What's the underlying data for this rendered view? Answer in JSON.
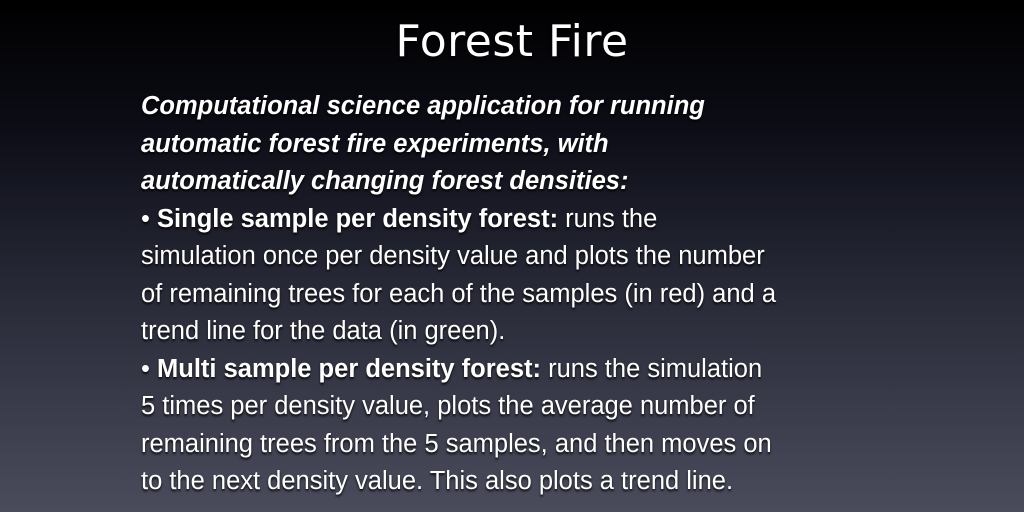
{
  "slide": {
    "title": "Forest Fire",
    "intro_lines": [
      "Computational science application for running",
      "automatic forest fire experiments, with",
      "automatically changing forest densities:"
    ],
    "bullets": [
      {
        "marker": "•",
        "label": "Single sample per density forest:",
        "lines": [
          " runs the",
          "simulation once per density value and plots the number",
          "of remaining trees for each of the samples (in red) and a",
          "trend line for the data (in green)."
        ]
      },
      {
        "marker": "•",
        "label": "Multi sample per density forest:",
        "lines": [
          " runs the simulation",
          "5 times per density value, plots the average number of",
          "remaining trees from the 5 samples, and then moves on",
          "to the next density value. This also plots a trend line."
        ]
      }
    ]
  }
}
